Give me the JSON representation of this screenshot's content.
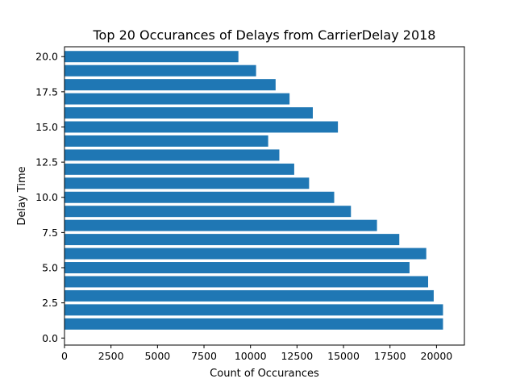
{
  "chart_data": {
    "type": "bar",
    "orientation": "horizontal",
    "title": "Top 20 Occurances of Delays from CarrierDelay 2018",
    "xlabel": "Count of Occurances",
    "ylabel": "Delay Time",
    "xlim": [
      0,
      21500
    ],
    "ylim": [
      -0.5,
      20.7
    ],
    "x_ticks": [
      0,
      2500,
      5000,
      7500,
      10000,
      12500,
      15000,
      17500,
      20000
    ],
    "x_tick_labels": [
      "0",
      "2500",
      "5000",
      "7500",
      "10000",
      "12500",
      "15000",
      "17500",
      "20000"
    ],
    "y_ticks": [
      0,
      2.5,
      5,
      7.5,
      10,
      12.5,
      15,
      17.5,
      20
    ],
    "y_tick_labels": [
      "0.0",
      "2.5",
      "5.0",
      "7.5",
      "10.0",
      "12.5",
      "15.0",
      "17.5",
      "20.0"
    ],
    "bar_color": "#1f77b4",
    "grid": false,
    "bars": [
      {
        "delay": 1,
        "count": 20350
      },
      {
        "delay": 2,
        "count": 20350
      },
      {
        "delay": 3,
        "count": 19850
      },
      {
        "delay": 4,
        "count": 19550
      },
      {
        "delay": 5,
        "count": 18550
      },
      {
        "delay": 6,
        "count": 19450
      },
      {
        "delay": 7,
        "count": 18000
      },
      {
        "delay": 8,
        "count": 16800
      },
      {
        "delay": 9,
        "count": 15400
      },
      {
        "delay": 10,
        "count": 14500
      },
      {
        "delay": 11,
        "count": 13150
      },
      {
        "delay": 12,
        "count": 12350
      },
      {
        "delay": 13,
        "count": 11550
      },
      {
        "delay": 14,
        "count": 10950
      },
      {
        "delay": 15,
        "count": 14700
      },
      {
        "delay": 16,
        "count": 13350
      },
      {
        "delay": 17,
        "count": 12100
      },
      {
        "delay": 18,
        "count": 11350
      },
      {
        "delay": 19,
        "count": 10300
      },
      {
        "delay": 20,
        "count": 9350
      }
    ]
  }
}
